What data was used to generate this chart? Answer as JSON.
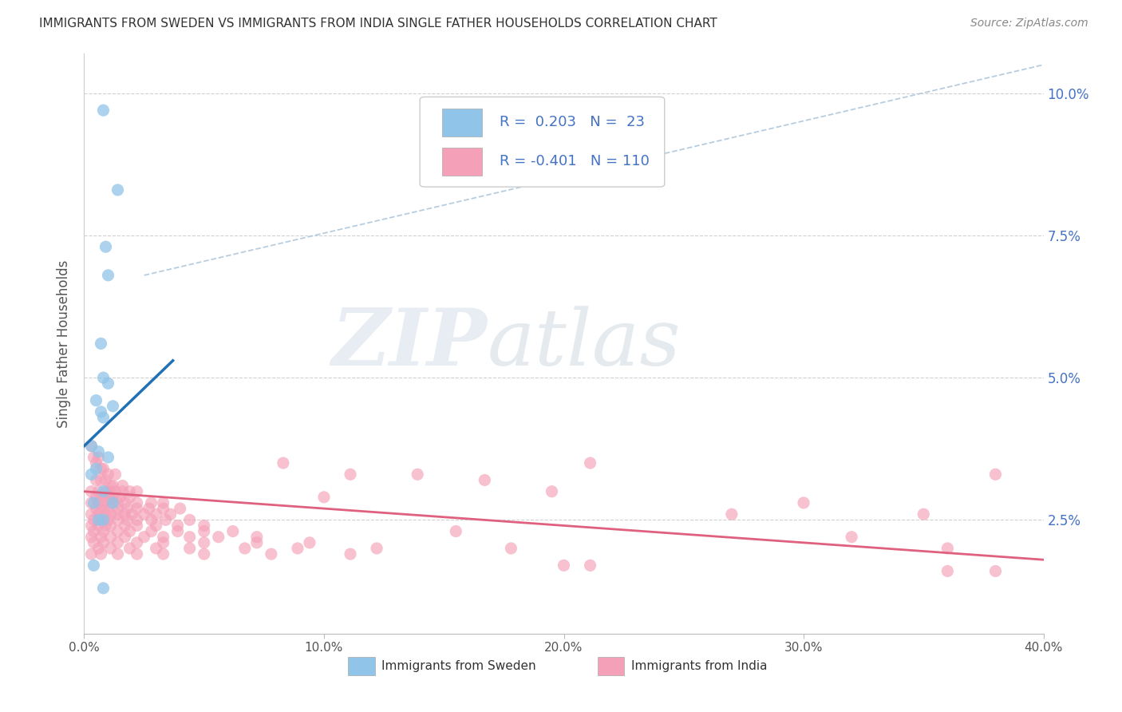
{
  "title": "IMMIGRANTS FROM SWEDEN VS IMMIGRANTS FROM INDIA SINGLE FATHER HOUSEHOLDS CORRELATION CHART",
  "source": "Source: ZipAtlas.com",
  "ylabel": "Single Father Households",
  "xlim": [
    0.0,
    0.4
  ],
  "ylim": [
    0.005,
    0.107
  ],
  "color_sweden": "#90c4e8",
  "color_india": "#f4a0b8",
  "color_line_sweden": "#2171b5",
  "color_line_india": "#e06080",
  "color_diag": "#b0c8dc",
  "watermark_zip": "ZIP",
  "watermark_atlas": "atlas",
  "sweden_points": [
    [
      0.008,
      0.097
    ],
    [
      0.014,
      0.083
    ],
    [
      0.009,
      0.073
    ],
    [
      0.01,
      0.068
    ],
    [
      0.007,
      0.056
    ],
    [
      0.008,
      0.05
    ],
    [
      0.01,
      0.049
    ],
    [
      0.005,
      0.046
    ],
    [
      0.012,
      0.045
    ],
    [
      0.007,
      0.044
    ],
    [
      0.008,
      0.043
    ],
    [
      0.003,
      0.038
    ],
    [
      0.006,
      0.037
    ],
    [
      0.01,
      0.036
    ],
    [
      0.005,
      0.034
    ],
    [
      0.003,
      0.033
    ],
    [
      0.008,
      0.03
    ],
    [
      0.012,
      0.028
    ],
    [
      0.004,
      0.028
    ],
    [
      0.008,
      0.025
    ],
    [
      0.006,
      0.025
    ],
    [
      0.004,
      0.017
    ],
    [
      0.008,
      0.013
    ]
  ],
  "india_points": [
    [
      0.003,
      0.038
    ],
    [
      0.004,
      0.036
    ],
    [
      0.006,
      0.036
    ],
    [
      0.005,
      0.035
    ],
    [
      0.007,
      0.034
    ],
    [
      0.008,
      0.034
    ],
    [
      0.01,
      0.033
    ],
    [
      0.013,
      0.033
    ],
    [
      0.005,
      0.032
    ],
    [
      0.007,
      0.032
    ],
    [
      0.009,
      0.032
    ],
    [
      0.011,
      0.031
    ],
    [
      0.012,
      0.031
    ],
    [
      0.016,
      0.031
    ],
    [
      0.003,
      0.03
    ],
    [
      0.006,
      0.03
    ],
    [
      0.009,
      0.03
    ],
    [
      0.011,
      0.03
    ],
    [
      0.013,
      0.03
    ],
    [
      0.016,
      0.03
    ],
    [
      0.019,
      0.03
    ],
    [
      0.022,
      0.03
    ],
    [
      0.005,
      0.029
    ],
    [
      0.007,
      0.029
    ],
    [
      0.01,
      0.029
    ],
    [
      0.012,
      0.029
    ],
    [
      0.015,
      0.029
    ],
    [
      0.019,
      0.029
    ],
    [
      0.003,
      0.028
    ],
    [
      0.006,
      0.028
    ],
    [
      0.009,
      0.028
    ],
    [
      0.011,
      0.028
    ],
    [
      0.014,
      0.028
    ],
    [
      0.017,
      0.028
    ],
    [
      0.022,
      0.028
    ],
    [
      0.028,
      0.028
    ],
    [
      0.033,
      0.028
    ],
    [
      0.005,
      0.027
    ],
    [
      0.007,
      0.027
    ],
    [
      0.01,
      0.027
    ],
    [
      0.014,
      0.027
    ],
    [
      0.018,
      0.027
    ],
    [
      0.022,
      0.027
    ],
    [
      0.027,
      0.027
    ],
    [
      0.033,
      0.027
    ],
    [
      0.04,
      0.027
    ],
    [
      0.003,
      0.026
    ],
    [
      0.006,
      0.026
    ],
    [
      0.009,
      0.026
    ],
    [
      0.011,
      0.026
    ],
    [
      0.014,
      0.026
    ],
    [
      0.017,
      0.026
    ],
    [
      0.02,
      0.026
    ],
    [
      0.025,
      0.026
    ],
    [
      0.03,
      0.026
    ],
    [
      0.036,
      0.026
    ],
    [
      0.004,
      0.025
    ],
    [
      0.007,
      0.025
    ],
    [
      0.01,
      0.025
    ],
    [
      0.014,
      0.025
    ],
    [
      0.018,
      0.025
    ],
    [
      0.022,
      0.025
    ],
    [
      0.028,
      0.025
    ],
    [
      0.034,
      0.025
    ],
    [
      0.044,
      0.025
    ],
    [
      0.003,
      0.024
    ],
    [
      0.006,
      0.024
    ],
    [
      0.009,
      0.024
    ],
    [
      0.011,
      0.024
    ],
    [
      0.017,
      0.024
    ],
    [
      0.022,
      0.024
    ],
    [
      0.03,
      0.024
    ],
    [
      0.039,
      0.024
    ],
    [
      0.05,
      0.024
    ],
    [
      0.004,
      0.023
    ],
    [
      0.008,
      0.023
    ],
    [
      0.014,
      0.023
    ],
    [
      0.019,
      0.023
    ],
    [
      0.028,
      0.023
    ],
    [
      0.039,
      0.023
    ],
    [
      0.05,
      0.023
    ],
    [
      0.062,
      0.023
    ],
    [
      0.003,
      0.022
    ],
    [
      0.007,
      0.022
    ],
    [
      0.011,
      0.022
    ],
    [
      0.017,
      0.022
    ],
    [
      0.025,
      0.022
    ],
    [
      0.033,
      0.022
    ],
    [
      0.044,
      0.022
    ],
    [
      0.056,
      0.022
    ],
    [
      0.072,
      0.022
    ],
    [
      0.004,
      0.021
    ],
    [
      0.008,
      0.021
    ],
    [
      0.014,
      0.021
    ],
    [
      0.022,
      0.021
    ],
    [
      0.033,
      0.021
    ],
    [
      0.05,
      0.021
    ],
    [
      0.072,
      0.021
    ],
    [
      0.094,
      0.021
    ],
    [
      0.006,
      0.02
    ],
    [
      0.011,
      0.02
    ],
    [
      0.019,
      0.02
    ],
    [
      0.03,
      0.02
    ],
    [
      0.044,
      0.02
    ],
    [
      0.067,
      0.02
    ],
    [
      0.089,
      0.02
    ],
    [
      0.003,
      0.019
    ],
    [
      0.007,
      0.019
    ],
    [
      0.014,
      0.019
    ],
    [
      0.022,
      0.019
    ],
    [
      0.033,
      0.019
    ],
    [
      0.05,
      0.019
    ],
    [
      0.078,
      0.019
    ],
    [
      0.111,
      0.019
    ],
    [
      0.083,
      0.035
    ],
    [
      0.111,
      0.033
    ],
    [
      0.139,
      0.033
    ],
    [
      0.167,
      0.032
    ],
    [
      0.1,
      0.029
    ],
    [
      0.195,
      0.03
    ],
    [
      0.155,
      0.023
    ],
    [
      0.122,
      0.02
    ],
    [
      0.178,
      0.02
    ],
    [
      0.211,
      0.035
    ],
    [
      0.2,
      0.017
    ],
    [
      0.211,
      0.017
    ],
    [
      0.27,
      0.026
    ],
    [
      0.3,
      0.028
    ],
    [
      0.32,
      0.022
    ],
    [
      0.35,
      0.026
    ],
    [
      0.36,
      0.02
    ],
    [
      0.36,
      0.016
    ],
    [
      0.38,
      0.016
    ],
    [
      0.38,
      0.033
    ]
  ],
  "sweden_line_x": [
    0.0,
    0.037
  ],
  "sweden_line_y": [
    0.038,
    0.053
  ],
  "india_line_x": [
    0.0,
    0.4
  ],
  "india_line_y": [
    0.03,
    0.018
  ],
  "diag_line_x": [
    0.025,
    0.4
  ],
  "diag_line_y": [
    0.068,
    0.105
  ]
}
